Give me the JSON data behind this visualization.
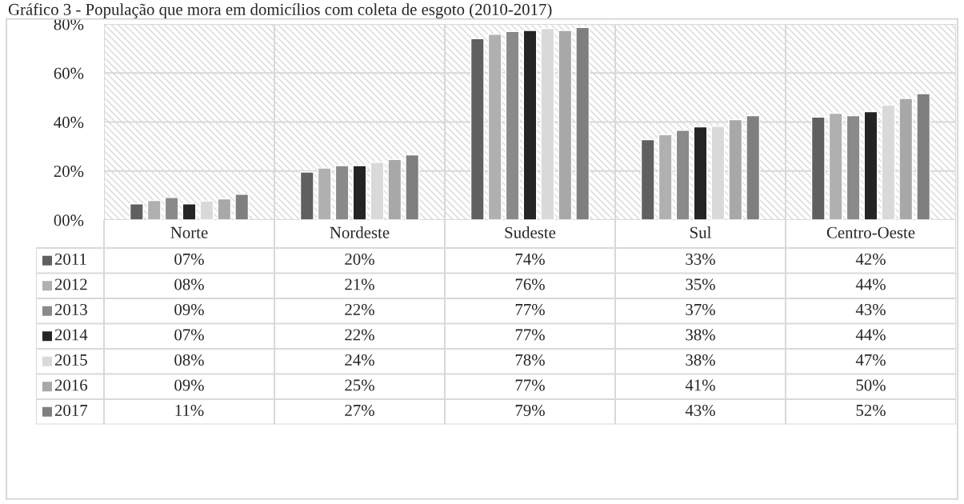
{
  "chart_data": {
    "type": "bar",
    "title": "Gráfico 3 - População que mora em domicílios com coleta de esgoto (2010-2017)",
    "categories": [
      "Norte",
      "Nordeste",
      "Sudeste",
      "Sul",
      "Centro-Oeste"
    ],
    "ylim": [
      0,
      80
    ],
    "yticks": [
      {
        "value": 0,
        "label": "00%"
      },
      {
        "value": 20,
        "label": "20%"
      },
      {
        "value": 40,
        "label": "40%"
      },
      {
        "value": 60,
        "label": "60%"
      },
      {
        "value": 80,
        "label": "80%"
      }
    ],
    "grid": "y",
    "legend": "bottom",
    "series": [
      {
        "name": "2011",
        "color": "#606060",
        "values": [
          6.6,
          19.6,
          74.0,
          32.8,
          42.0
        ],
        "value_labels": [
          "07%",
          "20%",
          "74%",
          "33%",
          "42%"
        ]
      },
      {
        "name": "2012",
        "color": "#b0b0b0",
        "values": [
          8.0,
          21.2,
          75.8,
          34.8,
          43.6
        ],
        "value_labels": [
          "08%",
          "21%",
          "76%",
          "35%",
          "44%"
        ]
      },
      {
        "name": "2013",
        "color": "#8a8a8a",
        "values": [
          9.2,
          22.2,
          77.0,
          36.6,
          42.6
        ],
        "value_labels": [
          "09%",
          "22%",
          "77%",
          "37%",
          "43%"
        ]
      },
      {
        "name": "2014",
        "color": "#242424",
        "values": [
          6.6,
          22.2,
          77.4,
          38.0,
          44.2
        ],
        "value_labels": [
          "07%",
          "22%",
          "77%",
          "38%",
          "44%"
        ]
      },
      {
        "name": "2015",
        "color": "#d9d9d9",
        "values": [
          7.7,
          23.6,
          78.2,
          38.3,
          46.9
        ],
        "value_labels": [
          "08%",
          "24%",
          "78%",
          "38%",
          "47%"
        ]
      },
      {
        "name": "2016",
        "color": "#a8a8a8",
        "values": [
          8.6,
          24.7,
          77.4,
          41.0,
          49.6
        ],
        "value_labels": [
          "09%",
          "25%",
          "77%",
          "41%",
          "50%"
        ]
      },
      {
        "name": "2017",
        "color": "#7f7f7f",
        "values": [
          10.5,
          26.6,
          78.6,
          42.6,
          51.6
        ],
        "value_labels": [
          "11%",
          "27%",
          "79%",
          "43%",
          "52%"
        ]
      }
    ]
  }
}
